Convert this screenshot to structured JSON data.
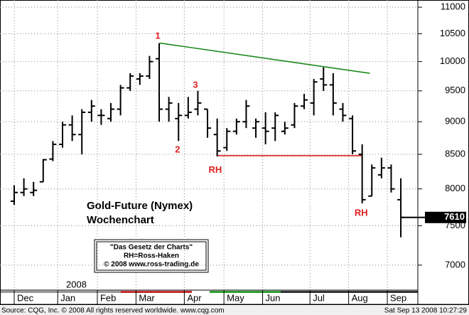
{
  "chart_data": {
    "type": "ohlc",
    "title": "Gold-Future (Nymex)",
    "subtitle": "Wochenchart",
    "year_label": "2008",
    "log_scale": true,
    "grid": true,
    "color": "#000000",
    "x": [
      0,
      1,
      2,
      3,
      4,
      5,
      6,
      7,
      8,
      9,
      10,
      11,
      12,
      13,
      14,
      15,
      16,
      17,
      18,
      19,
      20,
      21,
      22,
      23,
      24,
      25,
      26,
      27,
      28,
      29,
      30,
      31,
      32,
      33,
      34,
      35,
      36,
      37,
      38,
      39,
      40
    ],
    "open": [
      7830,
      7950,
      7950,
      8100,
      8430,
      8650,
      8950,
      8800,
      9150,
      9100,
      9050,
      9200,
      9550,
      9700,
      9750,
      10050,
      9200,
      9050,
      9100,
      9200,
      9200,
      8800,
      8600,
      8850,
      9000,
      8900,
      8900,
      8900,
      8850,
      8950,
      9250,
      9300,
      9700,
      9600,
      9200,
      9050,
      8500,
      7900,
      8200,
      8300,
      7850
    ],
    "high": [
      8050,
      8150,
      8100,
      8430,
      8700,
      9000,
      9100,
      9200,
      9350,
      9200,
      9300,
      9600,
      9800,
      9800,
      10100,
      10330,
      9400,
      9300,
      9400,
      9500,
      9200,
      9050,
      8900,
      9050,
      9350,
      9050,
      9150,
      9150,
      9000,
      9300,
      9450,
      9700,
      9900,
      9800,
      9300,
      9100,
      8650,
      8350,
      8450,
      8350,
      8150
    ],
    "low": [
      7780,
      7900,
      7900,
      8100,
      8400,
      8600,
      8700,
      8500,
      9000,
      8950,
      9000,
      9100,
      9500,
      9600,
      9700,
      9000,
      9000,
      8700,
      9050,
      9100,
      8750,
      8470,
      8550,
      8800,
      8900,
      8750,
      8650,
      8700,
      8800,
      8900,
      9200,
      9100,
      9500,
      9100,
      9000,
      8500,
      7800,
      7900,
      8150,
      7950,
      7350
    ],
    "close": [
      7950,
      8000,
      7980,
      8420,
      8650,
      8950,
      8800,
      9150,
      9250,
      9100,
      9200,
      9550,
      9750,
      9750,
      10000,
      9200,
      9300,
      9100,
      9150,
      9300,
      8900,
      8550,
      8850,
      9000,
      9250,
      9000,
      8850,
      9100,
      8900,
      9250,
      9350,
      9650,
      9600,
      9300,
      9100,
      8550,
      7850,
      8300,
      8300,
      8000,
      7610
    ],
    "xlim": [
      -1.47,
      41.76
    ],
    "xticks": [
      {
        "value": 0,
        "label": "Dec"
      },
      {
        "value": 4.5,
        "label": "Jan"
      },
      {
        "value": 8.6,
        "label": "Feb"
      },
      {
        "value": 12.6,
        "label": "Mar"
      },
      {
        "value": 17.6,
        "label": "Apr"
      },
      {
        "value": 21.7,
        "label": "May"
      },
      {
        "value": 25.7,
        "label": "Jun"
      },
      {
        "value": 30.6,
        "label": "Jul"
      },
      {
        "value": 34.6,
        "label": "Aug"
      },
      {
        "value": 38.6,
        "label": "Sep"
      }
    ],
    "ylim": [
      6700,
      11140
    ],
    "yticks": [
      7000,
      7500,
      8000,
      8500,
      9000,
      9500,
      10000,
      10500,
      11000
    ],
    "last_price": 7610,
    "lines": [
      {
        "color": "#1a8a1a",
        "from": [
          15.07,
          10330
        ],
        "to": [
          36.8,
          9797
        ]
      },
      {
        "color": "#e02020",
        "from": [
          21.0,
          8480
        ],
        "to": [
          36.0,
          8480
        ]
      }
    ],
    "annotations": [
      {
        "text": "1",
        "x": 14.85,
        "y": 10450
      },
      {
        "text": "2",
        "x": 16.9,
        "y": 8566
      },
      {
        "text": "3",
        "x": 18.75,
        "y": 9592
      },
      {
        "text": "RH",
        "x": 20.8,
        "y": 8263
      },
      {
        "text": "RH",
        "x": 35.9,
        "y": 7665
      }
    ],
    "note_box": [
      "\"Das Gesetz der Charts\"",
      "RH=Ross-Haken",
      "© 2008 www.ross-trading.de"
    ],
    "footer_left": "Source: CQG, Inc. © 2008 All rights reserved worldwide. www.cqg.com",
    "footer_right": "Sat Sep 13 2008 10:27:29"
  }
}
